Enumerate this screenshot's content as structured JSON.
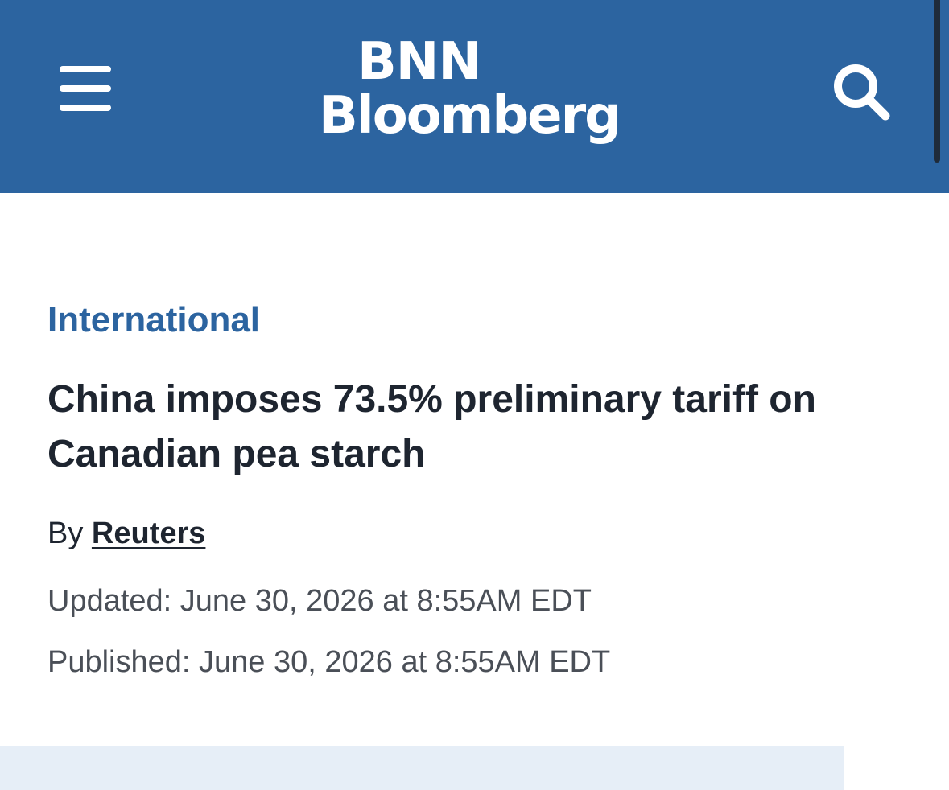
{
  "header": {
    "logo_line1": "BNN",
    "logo_line2": "Bloomberg",
    "menu_icon": "hamburger-menu-icon",
    "search_icon": "search-icon",
    "background_color": "#2c64a0"
  },
  "article": {
    "category": "International",
    "headline": "China imposes 73.5% preliminary tariff on Canadian pea starch",
    "byline_prefix": "By",
    "author": "Reuters",
    "updated": "Updated: June 30, 2026 at 8:55AM EDT",
    "published": "Published: June 30, 2026 at 8:55AM EDT"
  },
  "colors": {
    "accent": "#2c64a0",
    "headline_text": "#1e2530",
    "meta_text": "#4a4f57",
    "banner_bg": "#e6eef7"
  }
}
